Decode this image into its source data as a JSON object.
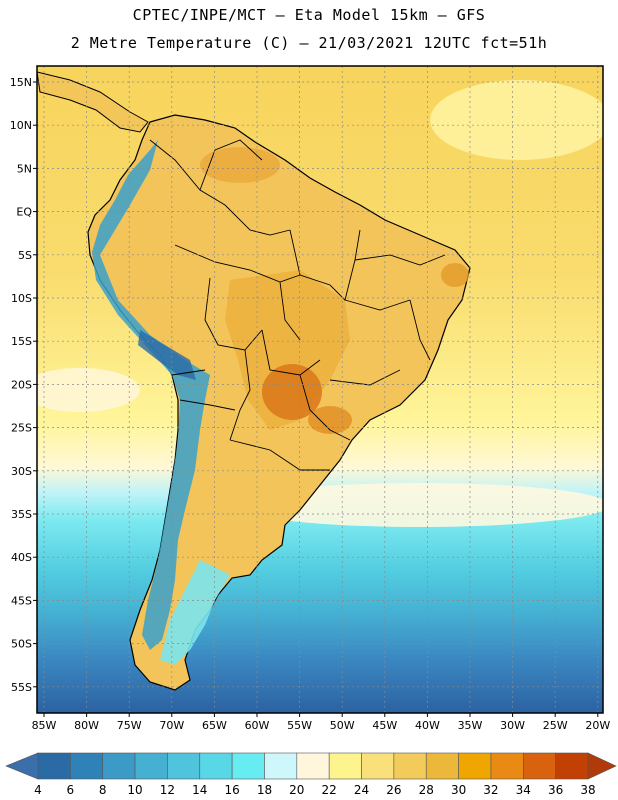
{
  "header": {
    "title_line1": "CPTEC/INPE/MCT –  Eta Model 15km – GFS",
    "title_line2": "2 Metre Temperature (C) – 21/03/2021 12UTC fct=51h"
  },
  "map": {
    "lat_labels": [
      "15N",
      "10N",
      "5N",
      "EQ",
      "5S",
      "10S",
      "15S",
      "20S",
      "25S",
      "30S",
      "35S",
      "40S",
      "45S",
      "50S",
      "55S"
    ],
    "lon_labels": [
      "85W",
      "80W",
      "75W",
      "70W",
      "65W",
      "60W",
      "55W",
      "50W",
      "45W",
      "40W",
      "35W",
      "30W",
      "25W",
      "20W"
    ],
    "ocean_bands": [
      {
        "name": "tropical-ocean",
        "temp_c": "26-28",
        "color": "#f7d45c"
      },
      {
        "name": "subtropical-ocean",
        "temp_c": "22-24",
        "color": "#fff59a"
      },
      {
        "name": "mid-lat-ocean",
        "temp_c": "14-18",
        "color": "#69e8ee"
      },
      {
        "name": "southern-ocean",
        "temp_c": "6-10",
        "color": "#3c8fbf"
      }
    ]
  },
  "colorbar": {
    "ticks": [
      "4",
      "6",
      "8",
      "10",
      "12",
      "14",
      "16",
      "18",
      "20",
      "22",
      "24",
      "26",
      "28",
      "30",
      "32",
      "34",
      "36",
      "38"
    ],
    "colors": [
      "#2a6aa5",
      "#2f82b8",
      "#3c9ac7",
      "#45b0d2",
      "#4fc4dc",
      "#58d7e6",
      "#67ecf1",
      "#cdf7fb",
      "#fff6dc",
      "#fef48e",
      "#f9e07a",
      "#f2cb5a",
      "#ecb83a",
      "#f0a600",
      "#e88a14",
      "#d8620d",
      "#c24003"
    ],
    "low_color": "#3a6fab",
    "high_color": "#b03a0a"
  }
}
